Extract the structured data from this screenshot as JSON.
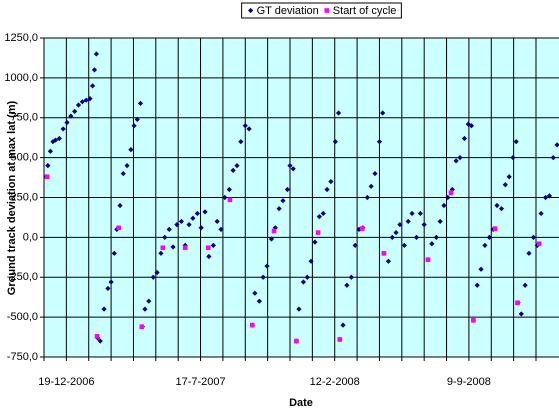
{
  "chart_data": {
    "type": "scatter",
    "xlabel": "Date",
    "ylabel": "Ground track deviation at max lat (m)",
    "xlim": [
      "2006-11-14",
      "2009-01-28"
    ],
    "ylim": [
      -750,
      1250
    ],
    "yticks": [
      {
        "value": -750,
        "label": "-750,0"
      },
      {
        "value": -500,
        "label": "-500,0"
      },
      {
        "value": -250,
        "label": "-250,0"
      },
      {
        "value": 0,
        "label": "0,0"
      },
      {
        "value": 250,
        "label": "250,0"
      },
      {
        "value": 500,
        "label": "500,0"
      },
      {
        "value": 750,
        "label": "750,0"
      },
      {
        "value": 1000,
        "label": "1000,0"
      },
      {
        "value": 1250,
        "label": "1250,0"
      }
    ],
    "xticks": [
      {
        "value": "2006-12-19",
        "label": "19-12-2006"
      },
      {
        "value": "2007-07-17",
        "label": "17-7-2007"
      },
      {
        "value": "2008-02-12",
        "label": "12-2-2008"
      },
      {
        "value": "2008-09-09",
        "label": "9-9-2008"
      }
    ],
    "xgrid": [
      "2006-11-14",
      "2006-12-19",
      "2007-01-23",
      "2007-02-27",
      "2007-04-03",
      "2007-05-08",
      "2007-06-12",
      "2007-07-17",
      "2007-08-21",
      "2007-09-25",
      "2007-10-30",
      "2007-12-04",
      "2008-01-08",
      "2008-02-12",
      "2008-03-18",
      "2008-04-22",
      "2008-05-27",
      "2008-07-01",
      "2008-08-05",
      "2008-09-09",
      "2008-10-14",
      "2008-11-18",
      "2008-12-23"
    ],
    "grid": true,
    "legend": "top",
    "background": "#ccffff",
    "series": [
      {
        "name": "GT deviation",
        "color": "#000080",
        "marker": "diamond",
        "x": [
          "2006-11-17",
          "2006-11-20",
          "2006-11-24",
          "2006-11-28",
          "2006-12-02",
          "2006-12-08",
          "2006-12-14",
          "2006-12-20",
          "2006-12-26",
          "2007-01-01",
          "2007-01-07",
          "2007-01-13",
          "2007-01-19",
          "2007-01-25",
          "2007-01-29",
          "2007-02-01",
          "2007-02-04",
          "2007-02-06",
          "2007-02-10",
          "2007-02-16",
          "2007-02-22",
          "2007-02-27",
          "2007-03-04",
          "2007-03-08",
          "2007-03-13",
          "2007-03-18",
          "2007-03-24",
          "2007-03-30",
          "2007-04-04",
          "2007-04-09",
          "2007-04-14",
          "2007-04-17",
          "2007-04-21",
          "2007-04-27",
          "2007-05-04",
          "2007-05-10",
          "2007-05-16",
          "2007-05-22",
          "2007-05-29",
          "2007-06-04",
          "2007-06-10",
          "2007-06-17",
          "2007-06-23",
          "2007-06-29",
          "2007-07-05",
          "2007-07-12",
          "2007-07-18",
          "2007-07-24",
          "2007-07-30",
          "2007-08-06",
          "2007-08-12",
          "2007-08-18",
          "2007-08-24",
          "2007-08-31",
          "2007-09-06",
          "2007-09-12",
          "2007-09-18",
          "2007-09-25",
          "2007-10-01",
          "2007-10-06",
          "2007-10-10",
          "2007-10-17",
          "2007-10-23",
          "2007-10-29",
          "2007-11-05",
          "2007-11-11",
          "2007-11-17",
          "2007-11-23",
          "2007-11-30",
          "2007-12-04",
          "2007-12-09",
          "2007-12-14",
          "2007-12-18",
          "2007-12-25",
          "2007-12-31",
          "2008-01-06",
          "2008-01-12",
          "2008-01-19",
          "2008-01-25",
          "2008-01-31",
          "2008-02-06",
          "2008-02-13",
          "2008-02-18",
          "2008-02-20",
          "2008-02-25",
          "2008-03-02",
          "2008-03-09",
          "2008-03-15",
          "2008-03-21",
          "2008-03-27",
          "2008-04-03",
          "2008-04-09",
          "2008-04-15",
          "2008-04-22",
          "2008-04-27",
          "2008-04-29",
          "2008-05-06",
          "2008-05-12",
          "2008-05-18",
          "2008-05-24",
          "2008-05-31",
          "2008-06-06",
          "2008-06-12",
          "2008-06-19",
          "2008-06-25",
          "2008-07-01",
          "2008-07-07",
          "2008-07-13",
          "2008-07-20",
          "2008-07-26",
          "2008-08-01",
          "2008-08-07",
          "2008-08-14",
          "2008-08-20",
          "2008-08-26",
          "2008-09-02",
          "2008-09-08",
          "2008-09-13",
          "2008-09-16",
          "2008-09-22",
          "2008-09-28",
          "2008-10-04",
          "2008-10-11",
          "2008-10-17",
          "2008-10-23",
          "2008-10-30",
          "2008-11-05",
          "2008-11-11",
          "2008-11-17",
          "2008-11-22",
          "2008-11-25",
          "2008-11-30",
          "2008-12-06",
          "2008-12-12",
          "2008-12-19",
          "2008-12-25",
          "2008-12-31",
          "2009-01-07",
          "2009-01-13",
          "2009-01-19",
          "2009-01-25"
        ],
        "values": [
          380,
          450,
          540,
          600,
          610,
          620,
          680,
          720,
          760,
          790,
          830,
          850,
          860,
          870,
          950,
          1050,
          1150,
          -630,
          -650,
          -450,
          -320,
          -280,
          -100,
          50,
          200,
          400,
          450,
          550,
          700,
          740,
          840,
          -560,
          -450,
          -400,
          -250,
          -220,
          -100,
          0,
          50,
          -60,
          80,
          100,
          -50,
          80,
          120,
          150,
          60,
          160,
          -120,
          -50,
          100,
          50,
          250,
          300,
          420,
          450,
          600,
          700,
          680,
          -550,
          -350,
          -400,
          -250,
          -180,
          -10,
          60,
          180,
          230,
          300,
          450,
          430,
          -650,
          -450,
          -280,
          -250,
          -150,
          -30,
          130,
          150,
          300,
          350,
          600,
          780,
          -640,
          -550,
          -300,
          -250,
          -50,
          50,
          60,
          250,
          320,
          400,
          600,
          780,
          -100,
          -150,
          0,
          30,
          80,
          -50,
          100,
          150,
          0,
          150,
          80,
          -140,
          -40,
          0,
          100,
          200,
          250,
          300,
          480,
          500,
          620,
          710,
          700,
          -520,
          -300,
          -200,
          -50,
          0,
          50,
          200,
          180,
          330,
          380,
          500,
          600,
          -410,
          -480,
          -300,
          -100,
          0,
          -50,
          150,
          250,
          260,
          500,
          580
        ]
      },
      {
        "name": "Start of cycle",
        "color": "#ff00ff",
        "marker": "square",
        "x": [
          "2006-11-19",
          "2007-02-05",
          "2007-03-11",
          "2007-04-16",
          "2007-05-19",
          "2007-06-23",
          "2007-07-29",
          "2007-09-01",
          "2007-10-06",
          "2007-11-09",
          "2007-12-14",
          "2008-01-17",
          "2008-02-20",
          "2008-03-26",
          "2008-04-29",
          "2008-07-07",
          "2008-08-12",
          "2008-09-16",
          "2008-10-20",
          "2008-11-24",
          "2008-12-28"
        ],
        "values": [
          380,
          -620,
          60,
          -560,
          -65,
          -65,
          -65,
          235,
          -550,
          40,
          -650,
          30,
          -640,
          55,
          -100,
          -140,
          280,
          -520,
          55,
          -410,
          -40
        ]
      }
    ]
  }
}
